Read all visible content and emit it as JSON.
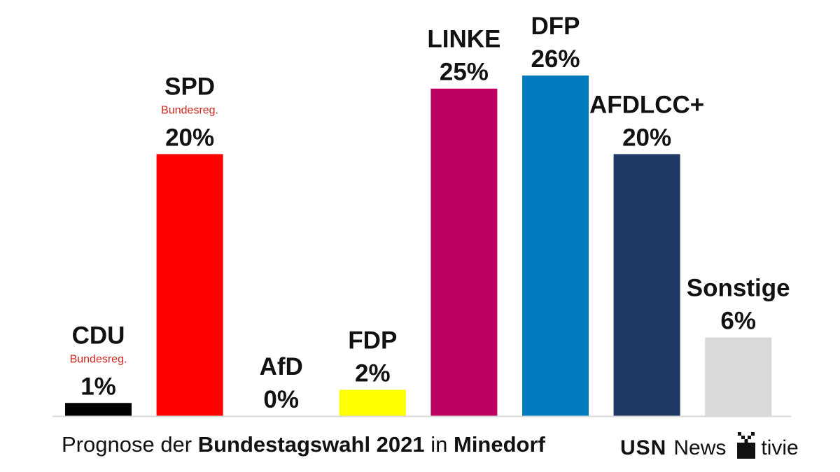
{
  "chart_data": {
    "type": "bar",
    "categories": [
      "CDU",
      "SPD",
      "AfD",
      "FDP",
      "LINKE",
      "DFP",
      "AFDLCC+",
      "Sonstige"
    ],
    "values": [
      1,
      20,
      0,
      2,
      25,
      26,
      20,
      6
    ],
    "value_labels": [
      "1%",
      "20%",
      "0%",
      "2%",
      "25%",
      "26%",
      "20%",
      "6%"
    ],
    "sublabels": [
      "Bundesreg.",
      "Bundesreg.",
      "",
      "",
      "",
      "",
      "",
      ""
    ],
    "colors": [
      "#000000",
      "#ff0000",
      "#0a9cd4",
      "#ffff00",
      "#bb0062",
      "#007bbd",
      "#1f3864",
      "#d9d9d9"
    ],
    "sublabel_color": "#d0241e",
    "ylim": [
      0,
      26
    ],
    "grid": false,
    "legend": "none",
    "xlabel": "",
    "ylabel": ""
  },
  "footer": {
    "prefix": "Prognose der ",
    "bold1": "Bundestagswahl 2021",
    "middle": " in ",
    "bold2": "Minedorf"
  },
  "brand": {
    "usn": "USN",
    "news": "News",
    "tivie": "tivie",
    "icon": "tv-icon"
  }
}
